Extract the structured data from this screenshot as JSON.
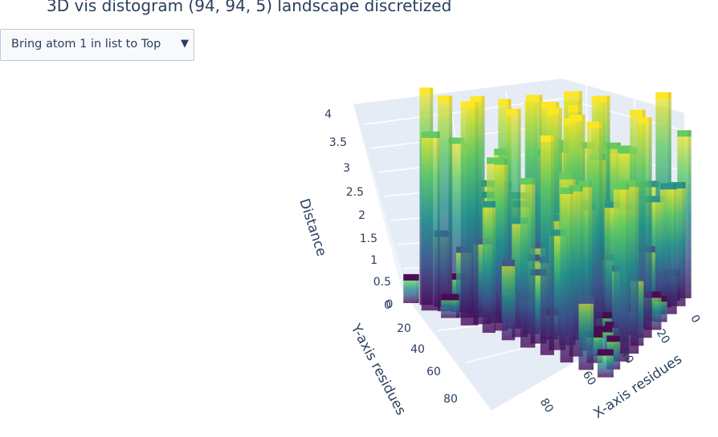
{
  "title": "3D vis distogram (94, 94, 5) landscape discretized",
  "dropdown": {
    "selected": "Bring atom 1 in list to Top",
    "arrow": "▼"
  },
  "chart_data": {
    "type": "surface",
    "title": "3D vis distogram (94, 94, 5) landscape discretized",
    "colorscale": "Viridis",
    "shape": [
      94,
      94,
      5
    ],
    "axes": {
      "z": {
        "label": "Distance",
        "range": [
          0,
          4
        ],
        "ticks": [
          "0",
          "0.5",
          "1",
          "1.5",
          "2",
          "2.5",
          "3",
          "3.5",
          "4"
        ]
      },
      "y": {
        "label": "Y-axis residues",
        "range": [
          0,
          93
        ],
        "ticks": [
          "0",
          "20",
          "40",
          "60",
          "80"
        ]
      },
      "x": {
        "label": "X-axis residues",
        "range": [
          0,
          93
        ],
        "ticks": [
          "0",
          "20",
          "40",
          "60",
          "80"
        ]
      }
    },
    "surface_levels": [
      0,
      1,
      2,
      3,
      4
    ]
  }
}
